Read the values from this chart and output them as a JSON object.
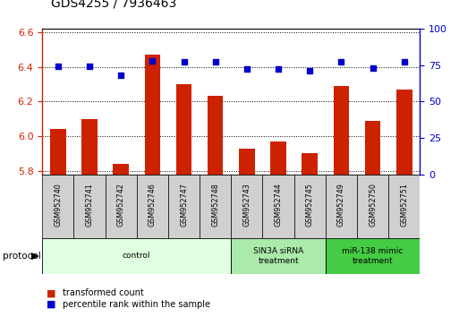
{
  "title": "GDS4255 / 7936463",
  "samples": [
    "GSM952740",
    "GSM952741",
    "GSM952742",
    "GSM952746",
    "GSM952747",
    "GSM952748",
    "GSM952743",
    "GSM952744",
    "GSM952745",
    "GSM952749",
    "GSM952750",
    "GSM952751"
  ],
  "transformed_count": [
    6.04,
    6.1,
    5.84,
    6.47,
    6.3,
    6.23,
    5.93,
    5.97,
    5.9,
    6.29,
    6.09,
    6.27
  ],
  "percentile_rank": [
    74,
    74,
    68,
    78,
    77,
    77,
    72,
    72,
    71,
    77,
    73,
    77
  ],
  "groups": [
    {
      "label": "control",
      "start": 0,
      "end": 6,
      "color": "#e0ffe0"
    },
    {
      "label": "SIN3A siRNA\ntreatment",
      "start": 6,
      "end": 9,
      "color": "#aaeaaa"
    },
    {
      "label": "miR-138 mimic\ntreatment",
      "start": 9,
      "end": 12,
      "color": "#44cc44"
    }
  ],
  "ylim_left": [
    5.78,
    6.62
  ],
  "ylim_right": [
    0,
    100
  ],
  "yticks_left": [
    5.8,
    6.0,
    6.2,
    6.4,
    6.6
  ],
  "yticks_right": [
    0,
    25,
    50,
    75,
    100
  ],
  "bar_color": "#cc2200",
  "dot_color": "#0000cc",
  "bar_width": 0.5,
  "legend_labels": [
    "transformed count",
    "percentile rank within the sample"
  ],
  "bar_bottom": 5.78
}
